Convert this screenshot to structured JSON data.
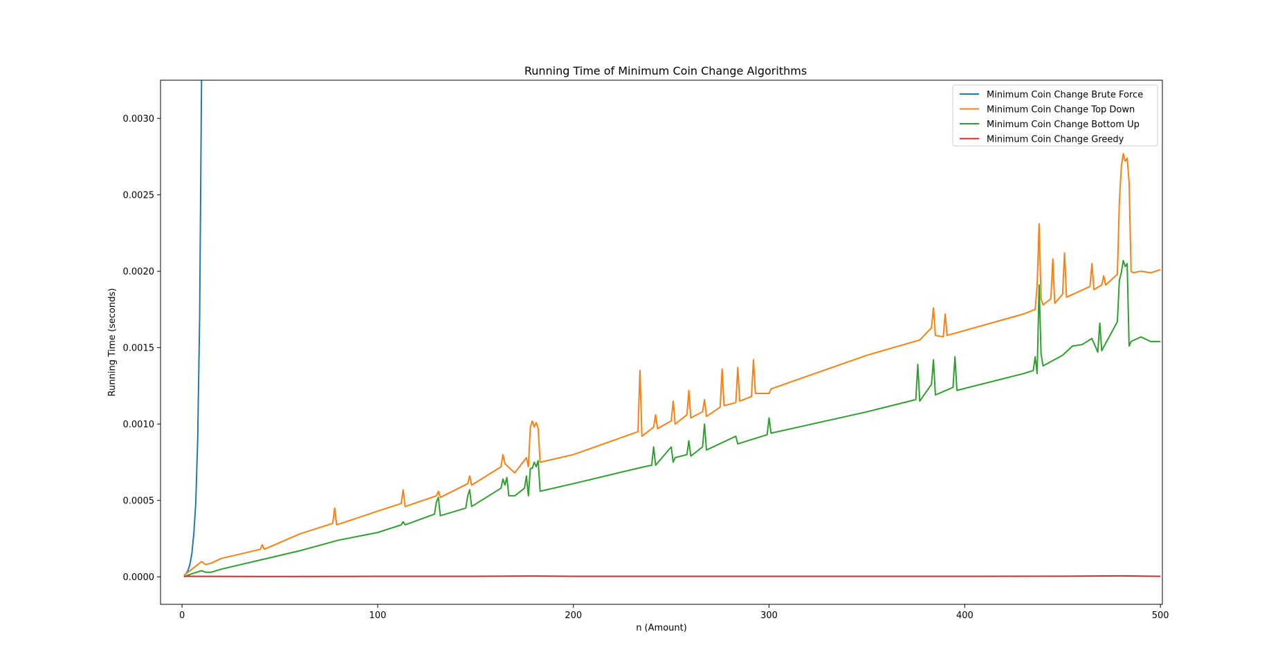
{
  "chart_data": {
    "type": "line",
    "title": "Running Time of Minimum Coin Change Algorithms",
    "xlabel": "n (Amount)",
    "ylabel": "Running Time (seconds)",
    "xlim": [
      -11,
      501
    ],
    "ylim": [
      -0.00018,
      0.00325
    ],
    "xticks": [
      0,
      100,
      200,
      300,
      400,
      500
    ],
    "xtick_labels": [
      "0",
      "100",
      "200",
      "300",
      "400",
      "500"
    ],
    "yticks": [
      0.0,
      0.0005,
      0.001,
      0.0015,
      0.002,
      0.0025,
      0.003
    ],
    "ytick_labels": [
      "0.0000",
      "0.0005",
      "0.0010",
      "0.0015",
      "0.0020",
      "0.0025",
      "0.0030"
    ],
    "grid": false,
    "legend_position": "top-right",
    "series": [
      {
        "name": "Minimum Coin Change Brute Force",
        "color": "#1f77b4",
        "x": [
          1,
          2,
          3,
          4,
          5,
          6,
          7,
          8,
          9,
          10
        ],
        "y": [
          1e-05,
          2e-05,
          4e-05,
          8e-05,
          0.00015,
          0.00028,
          0.00048,
          0.0009,
          0.0017,
          0.0033
        ]
      },
      {
        "name": "Minimum Coin Change Top Down",
        "color": "#ff7f0e",
        "x": [
          1,
          5,
          10,
          12,
          15,
          20,
          40,
          41,
          42,
          60,
          77,
          78,
          79,
          100,
          112,
          113,
          114,
          130,
          131,
          132,
          146,
          147,
          148,
          163,
          164,
          165,
          170,
          176,
          177,
          178,
          179,
          180,
          181,
          182,
          183,
          200,
          233,
          234,
          235,
          241,
          242,
          243,
          250,
          251,
          252,
          258,
          259,
          260,
          266,
          267,
          268,
          275,
          276,
          277,
          283,
          284,
          285,
          291,
          292,
          293,
          300,
          301,
          350,
          377,
          383,
          384,
          385,
          389,
          390,
          391,
          430,
          436,
          437,
          438,
          439,
          440,
          444,
          445,
          446,
          450,
          451,
          452,
          464,
          465,
          466,
          470,
          471,
          472,
          478,
          479,
          480,
          481,
          482,
          483,
          484,
          485,
          486,
          490,
          495,
          500
        ],
        "y": [
          1e-05,
          5e-05,
          0.0001,
          8e-05,
          9e-05,
          0.00012,
          0.00018,
          0.00021,
          0.00018,
          0.00028,
          0.00035,
          0.00045,
          0.00034,
          0.00043,
          0.00048,
          0.00057,
          0.00046,
          0.00053,
          0.00056,
          0.00052,
          0.00061,
          0.00066,
          0.0006,
          0.00072,
          0.0008,
          0.00074,
          0.00068,
          0.00078,
          0.00072,
          0.00098,
          0.00102,
          0.00098,
          0.00101,
          0.00097,
          0.00075,
          0.0008,
          0.00095,
          0.00135,
          0.00092,
          0.00098,
          0.00106,
          0.00097,
          0.00102,
          0.00115,
          0.001,
          0.00106,
          0.00122,
          0.00104,
          0.00108,
          0.00116,
          0.00105,
          0.00111,
          0.00136,
          0.00112,
          0.00114,
          0.00137,
          0.00115,
          0.00118,
          0.00142,
          0.0012,
          0.0012,
          0.00123,
          0.00145,
          0.00155,
          0.00163,
          0.00176,
          0.00158,
          0.00157,
          0.00172,
          0.00158,
          0.00172,
          0.00175,
          0.00191,
          0.00231,
          0.00182,
          0.00178,
          0.00182,
          0.00208,
          0.00179,
          0.00185,
          0.00212,
          0.00183,
          0.0019,
          0.00205,
          0.00188,
          0.00191,
          0.00197,
          0.00191,
          0.00198,
          0.00245,
          0.00268,
          0.00277,
          0.00272,
          0.00274,
          0.00258,
          0.002,
          0.00199,
          0.002,
          0.00199,
          0.00201
        ]
      },
      {
        "name": "Minimum Coin Change Bottom Up",
        "color": "#2ca02c",
        "x": [
          1,
          5,
          10,
          12,
          15,
          20,
          40,
          60,
          80,
          100,
          112,
          113,
          114,
          129,
          130,
          131,
          132,
          145,
          146,
          147,
          148,
          163,
          164,
          165,
          166,
          167,
          170,
          175,
          176,
          177,
          178,
          179,
          180,
          181,
          182,
          183,
          200,
          236,
          240,
          241,
          242,
          250,
          251,
          252,
          258,
          259,
          260,
          266,
          267,
          268,
          283,
          284,
          299,
          300,
          301,
          350,
          375,
          376,
          377,
          383,
          384,
          385,
          394,
          395,
          396,
          430,
          435,
          436,
          437,
          438,
          439,
          440,
          450,
          455,
          460,
          465,
          468,
          469,
          470,
          478,
          479,
          480,
          481,
          482,
          483,
          484,
          485,
          490,
          495,
          500
        ],
        "y": [
          0.0,
          2e-05,
          4e-05,
          3e-05,
          3e-05,
          5e-05,
          0.00011,
          0.00017,
          0.00024,
          0.00029,
          0.00034,
          0.00036,
          0.00034,
          0.00041,
          0.00049,
          0.00052,
          0.0004,
          0.00045,
          0.00053,
          0.00057,
          0.00046,
          0.00058,
          0.00064,
          0.0006,
          0.00065,
          0.00053,
          0.00053,
          0.00058,
          0.00066,
          0.00053,
          0.00071,
          0.00071,
          0.00075,
          0.00072,
          0.00076,
          0.00056,
          0.00061,
          0.00072,
          0.00073,
          0.00085,
          0.00073,
          0.00085,
          0.00075,
          0.00078,
          0.0008,
          0.00089,
          0.00079,
          0.00085,
          0.001,
          0.00083,
          0.00092,
          0.00087,
          0.00093,
          0.00104,
          0.00094,
          0.00108,
          0.00116,
          0.00139,
          0.00115,
          0.00126,
          0.00142,
          0.00119,
          0.00124,
          0.00144,
          0.00122,
          0.00133,
          0.00135,
          0.00144,
          0.00133,
          0.00191,
          0.00146,
          0.00138,
          0.00145,
          0.00151,
          0.00152,
          0.00156,
          0.00147,
          0.00166,
          0.00148,
          0.00167,
          0.00194,
          0.00199,
          0.00207,
          0.00203,
          0.00205,
          0.00151,
          0.00154,
          0.00157,
          0.00154,
          0.00154
        ]
      },
      {
        "name": "Minimum Coin Change Greedy",
        "color": "#d62728",
        "x": [
          1,
          50,
          100,
          150,
          180,
          200,
          250,
          300,
          350,
          400,
          450,
          480,
          500
        ],
        "y": [
          3e-06,
          2e-06,
          3e-06,
          3e-06,
          5e-06,
          3e-06,
          3e-06,
          3e-06,
          3e-06,
          3e-06,
          4e-06,
          6e-06,
          3e-06
        ]
      }
    ]
  }
}
